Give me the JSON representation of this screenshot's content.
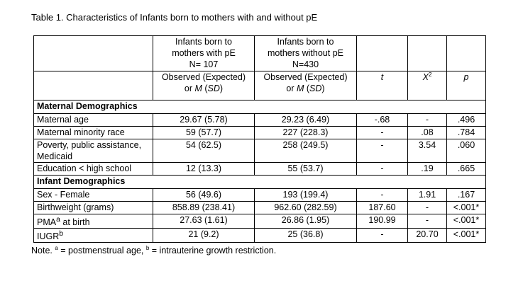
{
  "caption": "Table 1. Characteristics of Infants born to mothers with and without pE",
  "header": {
    "group1": [
      "Infants born to",
      "mothers with pE",
      "N= 107"
    ],
    "group2": [
      "Infants born to",
      "mothers without pE",
      "N=430"
    ],
    "sub1": "Observed (Expected)",
    "sub1b_pre": "or ",
    "sub1b_m": "M",
    "sub1b_sd": "SD",
    "t": "t",
    "x2": "X",
    "x2_sup": "2",
    "p": "p"
  },
  "sections": {
    "maternal": "Maternal Demographics",
    "infant": "Infant Demographics"
  },
  "rows": [
    {
      "label": "Maternal age",
      "g1": "29.67 (5.78)",
      "g2": "29.23 (6.49)",
      "t": "-.68",
      "x2": "-",
      "p": ".496"
    },
    {
      "label": "Maternal minority race",
      "g1": "59 (57.7)",
      "g2": "227 (228.3)",
      "t": "-",
      "x2": ".08",
      "p": ".784"
    },
    {
      "label": "Poverty, public assistance, Medicaid",
      "g1": "54 (62.5)",
      "g2": "258 (249.5)",
      "t": "-",
      "x2": "3.54",
      "p": ".060"
    },
    {
      "label": "Education < high school",
      "g1": "12 (13.3)",
      "g2": "55 (53.7)",
      "t": "-",
      "x2": ".19",
      "p": ".665"
    },
    {
      "label": "Sex - Female",
      "g1": "56 (49.6)",
      "g2": "193 (199.4)",
      "t": "-",
      "x2": "1.91",
      "p": ".167"
    },
    {
      "label": "Birthweight (grams)",
      "g1": "858.89 (238.41)",
      "g2": "962.60 (282.59)",
      "t": "187.60",
      "x2": "-",
      "p": "<.001*"
    },
    {
      "label": "PMA",
      "label_sup": "a",
      "label_post": " at birth",
      "g1": "27.63 (1.61)",
      "g2": "26.86 (1.95)",
      "t": "190.99",
      "x2": "-",
      "p": "<.001*"
    },
    {
      "label": "IUGR",
      "label_sup": "b",
      "g1": "21 (9.2)",
      "g2": "25 (36.8)",
      "t": "-",
      "x2": "20.70",
      "p": "<.001*"
    }
  ],
  "note": {
    "pre": "Note. ",
    "sup_a": "a",
    "mid": " = postmenstrual age, ",
    "sup_b": "b",
    "post": " = intrauterine growth restriction."
  }
}
